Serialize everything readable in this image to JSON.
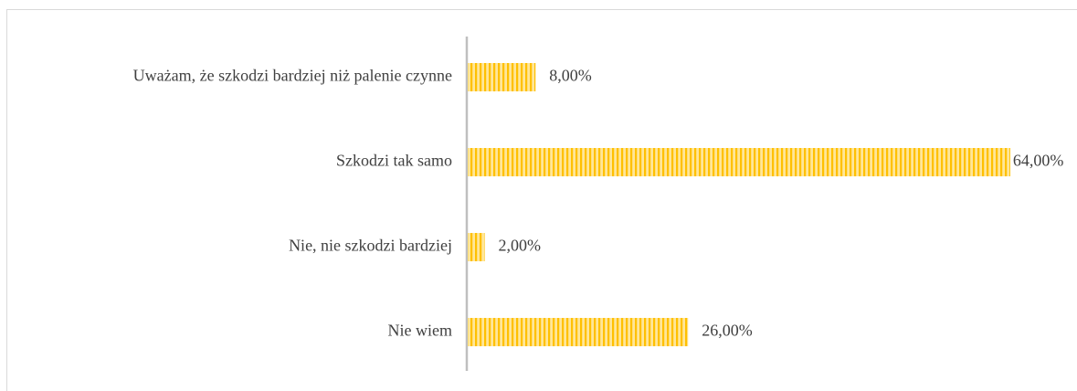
{
  "chart_data": {
    "type": "bar",
    "orientation": "horizontal",
    "categories": [
      "Uważam, że szkodzi bardziej niż palenie czynne",
      "Szkodzi tak samo",
      "Nie, nie szkodzi bardziej",
      "Nie wiem"
    ],
    "values": [
      8,
      64,
      2,
      26
    ],
    "value_labels": [
      "8,00%",
      "64,00%",
      "2,00%",
      "26,00%"
    ],
    "color": "#ffc000"
  }
}
